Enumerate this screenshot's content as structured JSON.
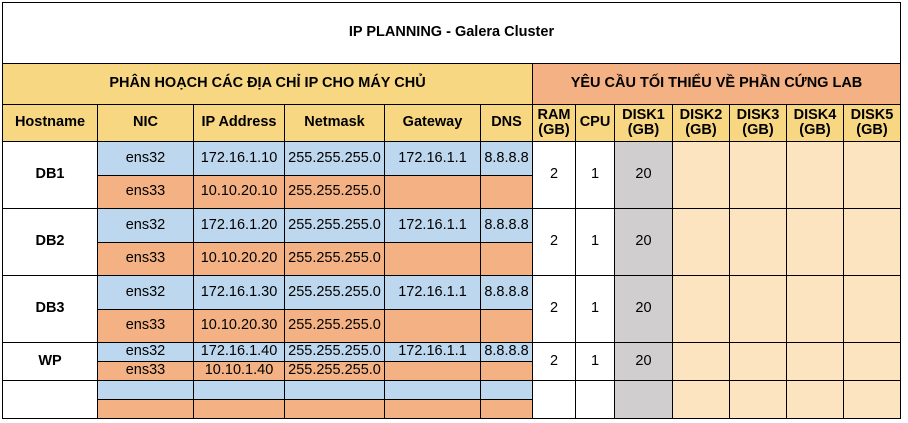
{
  "title": "IP PLANNING - Galera Cluster",
  "section_left": "PHÂN HOẠCH CÁC ĐỊA CHỈ IP CHO MÁY CHỦ",
  "section_right": "YÊU CẦU TỐI THIỂU VỀ PHẦN CỨNG LAB",
  "columns": {
    "hostname": "Hostname",
    "nic": "NIC",
    "ip": "IP Address",
    "netmask": "Netmask",
    "gateway": "Gateway",
    "dns": "DNS",
    "ram": [
      "RAM",
      "(GB)"
    ],
    "cpu": "CPU",
    "disk1": [
      "DISK1",
      "(GB)"
    ],
    "disk2": [
      "DISK2",
      "(GB)"
    ],
    "disk3": [
      "DISK3",
      "(GB)"
    ],
    "disk4": [
      "DISK4",
      "(GB)"
    ],
    "disk5": [
      "DISK5",
      "(GB)"
    ]
  },
  "hosts": [
    {
      "hostname": "DB1",
      "ram": "2",
      "cpu": "1",
      "disk1": "20",
      "nics": [
        {
          "nic": "ens32",
          "ip": "172.16.1.10",
          "netmask": "255.255.255.0",
          "gateway": "172.16.1.1",
          "dns": "8.8.8.8"
        },
        {
          "nic": "ens33",
          "ip": "10.10.20.10",
          "netmask": "255.255.255.0",
          "gateway": "",
          "dns": ""
        }
      ]
    },
    {
      "hostname": "DB2",
      "ram": "2",
      "cpu": "1",
      "disk1": "20",
      "nics": [
        {
          "nic": "ens32",
          "ip": "172.16.1.20",
          "netmask": "255.255.255.0",
          "gateway": "172.16.1.1",
          "dns": "8.8.8.8"
        },
        {
          "nic": "ens33",
          "ip": "10.10.20.20",
          "netmask": "255.255.255.0",
          "gateway": "",
          "dns": ""
        }
      ]
    },
    {
      "hostname": "DB3",
      "ram": "2",
      "cpu": "1",
      "disk1": "20",
      "nics": [
        {
          "nic": "ens32",
          "ip": "172.16.1.30",
          "netmask": "255.255.255.0",
          "gateway": "172.16.1.1",
          "dns": "8.8.8.8"
        },
        {
          "nic": "ens33",
          "ip": "10.10.20.30",
          "netmask": "255.255.255.0",
          "gateway": "",
          "dns": ""
        }
      ]
    },
    {
      "hostname": "WP",
      "ram": "2",
      "cpu": "1",
      "disk1": "20",
      "nics": [
        {
          "nic": "ens32",
          "ip": "172.16.1.40",
          "netmask": "255.255.255.0",
          "gateway": "172.16.1.1",
          "dns": "8.8.8.8"
        },
        {
          "nic": "ens33",
          "ip": "10.10.1.40",
          "netmask": "255.255.255.0",
          "gateway": "",
          "dns": ""
        }
      ]
    },
    {
      "hostname": "",
      "ram": "",
      "cpu": "",
      "disk1": "",
      "nics": [
        {
          "nic": "",
          "ip": "",
          "netmask": "",
          "gateway": "",
          "dns": ""
        },
        {
          "nic": "",
          "ip": "",
          "netmask": "",
          "gateway": "",
          "dns": ""
        }
      ]
    }
  ]
}
